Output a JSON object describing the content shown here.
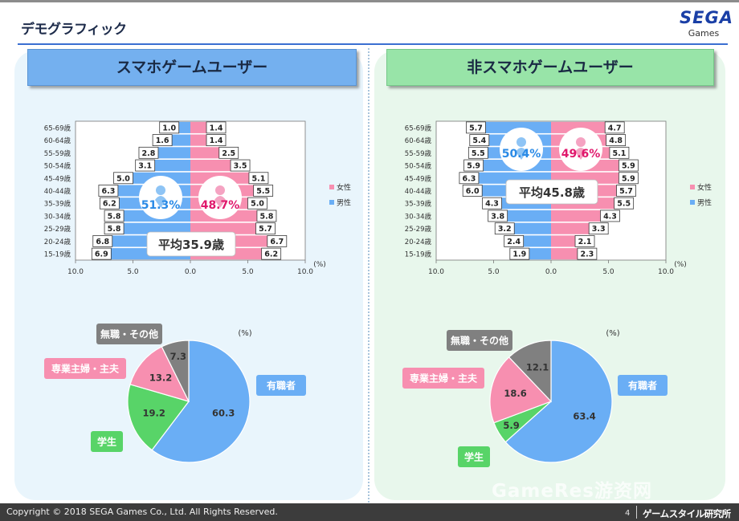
{
  "header": {
    "title": "デモグラフィック",
    "logo_text": "SEGA",
    "logo_sub": "Games"
  },
  "panels": {
    "left": {
      "title": "スマホゲームユーザー"
    },
    "right": {
      "title": "非スマホゲームユーザー"
    }
  },
  "footer": {
    "copyright": "Copyright © 2018 SEGA Games Co., Ltd. All Rights Reserved.",
    "page": "4",
    "lab": "ゲームスタイル研究所"
  },
  "watermark": "GameRes游资网",
  "colors": {
    "male": "#6aaef5",
    "female": "#f78fb0",
    "male_text": "#2a8ae6",
    "female_text": "#e0186c",
    "pie_worker": "#6aaef5",
    "pie_student": "#58d468",
    "pie_housewife": "#f78fb0",
    "pie_unemployed": "#808080"
  },
  "chart_data": [
    {
      "type": "bar",
      "orientation": "horizontal-population-pyramid",
      "panel": "left",
      "categories": [
        "65-69歳",
        "60-64歳",
        "55-59歳",
        "50-54歳",
        "45-49歳",
        "40-44歳",
        "35-39歳",
        "30-34歳",
        "25-29歳",
        "20-24歳",
        "15-19歳"
      ],
      "series": [
        {
          "name": "女性",
          "values": [
            1.4,
            1.4,
            2.5,
            3.5,
            5.1,
            5.5,
            5.0,
            5.8,
            5.7,
            6.7,
            6.2
          ]
        },
        {
          "name": "男性",
          "values": [
            1.0,
            1.6,
            2.8,
            3.1,
            5.0,
            6.3,
            6.2,
            5.8,
            5.8,
            6.8,
            6.9
          ]
        }
      ],
      "xticks": [
        "10.0",
        "5.0",
        "0.0",
        "5.0",
        "10.0"
      ],
      "xlim": [
        -10,
        10
      ],
      "unit": "(%)",
      "male_share": "51.3%",
      "female_share": "48.7%",
      "average_age": "平均35.9歳",
      "legend": "right"
    },
    {
      "type": "bar",
      "orientation": "horizontal-population-pyramid",
      "panel": "right",
      "categories": [
        "65-69歳",
        "60-64歳",
        "55-59歳",
        "50-54歳",
        "45-49歳",
        "40-44歳",
        "35-39歳",
        "30-34歳",
        "25-29歳",
        "20-24歳",
        "15-19歳"
      ],
      "series": [
        {
          "name": "女性",
          "values": [
            4.7,
            4.8,
            5.1,
            5.9,
            5.9,
            5.7,
            5.5,
            4.3,
            3.3,
            2.1,
            2.3
          ]
        },
        {
          "name": "男性",
          "values": [
            5.7,
            5.4,
            5.5,
            5.9,
            6.3,
            6.0,
            4.3,
            3.8,
            3.2,
            2.4,
            1.9
          ]
        }
      ],
      "xticks": [
        "10.0",
        "5.0",
        "0.0",
        "5.0",
        "10.0"
      ],
      "xlim": [
        -10,
        10
      ],
      "unit": "(%)",
      "male_share": "50.4%",
      "female_share": "49.6%",
      "average_age": "平均45.8歳",
      "legend": "right"
    },
    {
      "type": "pie",
      "panel": "left",
      "unit": "(%)",
      "slices": [
        {
          "label": "有職者",
          "value": 60.3
        },
        {
          "label": "学生",
          "value": 19.2
        },
        {
          "label": "専業主婦・主夫",
          "value": 13.2
        },
        {
          "label": "無職・その他",
          "value": 7.3
        }
      ]
    },
    {
      "type": "pie",
      "panel": "right",
      "unit": "(%)",
      "slices": [
        {
          "label": "有職者",
          "value": 63.4
        },
        {
          "label": "学生",
          "value": 5.9
        },
        {
          "label": "専業主婦・主夫",
          "value": 18.6
        },
        {
          "label": "無職・その他",
          "value": 12.1
        }
      ]
    }
  ]
}
